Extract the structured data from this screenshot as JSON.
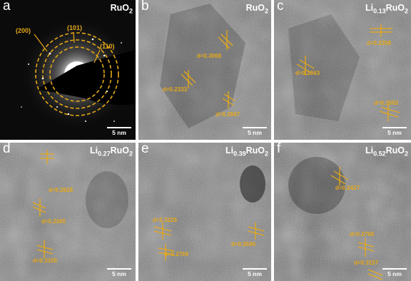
{
  "panels": {
    "a": {
      "letter": "a",
      "material": {
        "prefix": "RuO",
        "sub": "2",
        "mid": "",
        "sub2": ""
      },
      "rings": [
        "(200)",
        "(101)",
        "(110)"
      ],
      "scale": "5 nm"
    },
    "b": {
      "letter": "b",
      "material": {
        "prefix": "RuO",
        "sub": "2",
        "mid": "",
        "sub2": ""
      },
      "dlabels": [
        "d=0.3068",
        "d=0.2333",
        "d=0.2667"
      ],
      "scale": "5 nm"
    },
    "c": {
      "letter": "c",
      "material": {
        "prefix": "Li",
        "sub": "0.13",
        "mid": "RuO",
        "sub2": "2"
      },
      "dlabels": [
        "d=0.2358",
        "d=0.2663",
        "d=0.3093"
      ],
      "scale": "5 nm"
    },
    "d": {
      "letter": "d",
      "material": {
        "prefix": "Li",
        "sub": "0.27",
        "mid": "RuO",
        "sub2": "2"
      },
      "dlabels": [
        "d=0.2628",
        "d=0.2365",
        "d=0.3165"
      ],
      "scale": "5 nm"
    },
    "e": {
      "letter": "e",
      "material": {
        "prefix": "Li",
        "sub": "0.39",
        "mid": "RuO",
        "sub2": "2"
      },
      "dlabels": [
        "d=0.3226",
        "d=0.2769",
        "d=0.2696"
      ],
      "scale": "5 nm"
    },
    "f": {
      "letter": "f",
      "material": {
        "prefix": "Li",
        "sub": "0.52",
        "mid": "RuO",
        "sub2": "2"
      },
      "dlabels": [
        "d=0.2427",
        "d=0.2768",
        "d=0.3157"
      ],
      "scale": "5 nm"
    }
  },
  "colors": {
    "annotation": "#e6a817",
    "text": "#ffffff"
  }
}
